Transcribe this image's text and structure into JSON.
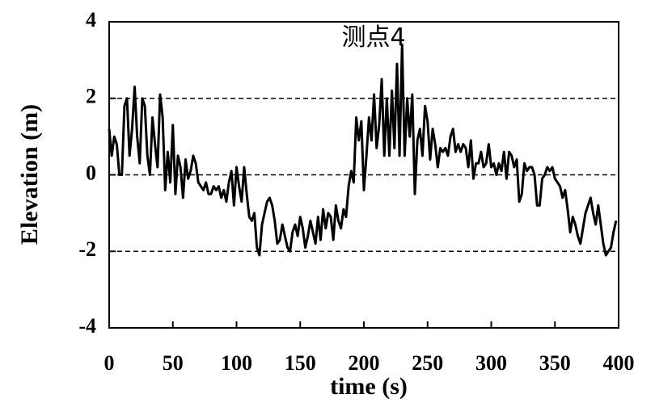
{
  "chart_data": {
    "type": "line",
    "title": "测点4",
    "x_label": "time (s)",
    "y_label": "Elevation (m)",
    "xlim": [
      0,
      400
    ],
    "xticks": [
      0,
      50,
      100,
      150,
      200,
      250,
      300,
      350,
      400
    ],
    "ylim": [
      -4,
      4
    ],
    "yticks": [
      -4,
      -2,
      0,
      2,
      4
    ],
    "grid": true,
    "x": [
      0,
      2,
      4,
      6,
      8,
      10,
      12,
      14,
      16,
      18,
      20,
      22,
      24,
      26,
      28,
      30,
      32,
      34,
      36,
      38,
      40,
      42,
      44,
      46,
      48,
      50,
      52,
      54,
      56,
      58,
      60,
      62,
      64,
      66,
      68,
      70,
      72,
      74,
      76,
      78,
      80,
      82,
      84,
      86,
      88,
      90,
      92,
      94,
      96,
      98,
      100,
      102,
      104,
      106,
      108,
      110,
      112,
      114,
      116,
      118,
      120,
      122,
      124,
      126,
      128,
      130,
      132,
      134,
      136,
      138,
      140,
      142,
      144,
      146,
      148,
      150,
      152,
      154,
      156,
      158,
      160,
      162,
      164,
      166,
      168,
      170,
      172,
      174,
      176,
      178,
      180,
      182,
      184,
      186,
      188,
      190,
      192,
      194,
      196,
      198,
      200,
      202,
      204,
      206,
      208,
      210,
      212,
      214,
      216,
      218,
      220,
      222,
      224,
      226,
      228,
      230,
      232,
      234,
      236,
      238,
      240,
      242,
      244,
      246,
      248,
      250,
      252,
      254,
      256,
      258,
      260,
      262,
      264,
      266,
      268,
      270,
      272,
      274,
      276,
      278,
      280,
      282,
      284,
      286,
      288,
      290,
      292,
      294,
      296,
      298,
      300,
      302,
      304,
      306,
      308,
      310,
      312,
      314,
      316,
      318,
      320,
      322,
      324,
      326,
      328,
      330,
      332,
      334,
      336,
      338,
      340,
      342,
      344,
      346,
      348,
      350,
      352,
      354,
      356,
      358,
      360,
      362,
      364,
      366,
      368,
      370,
      372,
      374,
      376,
      378,
      380,
      382,
      384,
      386,
      388,
      390,
      392,
      394,
      396,
      398
    ],
    "series": [
      {
        "color": "#000000",
        "values": [
          1.2,
          0.5,
          1.0,
          0.8,
          0.0,
          0.0,
          1.8,
          2.0,
          0.5,
          1.2,
          2.3,
          1.0,
          0.3,
          2.0,
          1.8,
          0.5,
          0.0,
          1.5,
          0.8,
          0.2,
          2.1,
          1.5,
          -0.4,
          0.6,
          -0.2,
          1.3,
          -0.5,
          0.5,
          0.2,
          -0.6,
          0.4,
          -0.1,
          0.1,
          0.5,
          0.3,
          -0.2,
          -0.3,
          -0.4,
          -0.2,
          -0.5,
          -0.5,
          -0.3,
          -0.4,
          -0.3,
          -0.6,
          -0.4,
          -0.7,
          -0.2,
          0.1,
          -0.8,
          0.2,
          -0.3,
          -0.7,
          0.2,
          -0.5,
          -1.1,
          -1.2,
          -1.0,
          -1.9,
          -2.1,
          -1.3,
          -1.0,
          -0.7,
          -0.6,
          -0.8,
          -1.2,
          -1.8,
          -1.7,
          -1.3,
          -1.6,
          -1.9,
          -2.0,
          -1.5,
          -1.3,
          -1.6,
          -1.1,
          -1.4,
          -1.9,
          -1.6,
          -1.2,
          -1.5,
          -1.8,
          -1.1,
          -1.7,
          -0.9,
          -1.4,
          -1.0,
          -1.1,
          -1.7,
          -0.8,
          -1.2,
          -1.4,
          -0.9,
          -1.1,
          -0.3,
          0.1,
          -0.2,
          1.5,
          0.9,
          1.4,
          -0.4,
          0.5,
          1.5,
          0.9,
          2.1,
          0.7,
          1.3,
          2.5,
          0.5,
          2.0,
          0.5,
          2.2,
          0.7,
          2.9,
          0.5,
          3.4,
          0.5,
          2.0,
          1.0,
          2.1,
          -0.5,
          0.9,
          1.2,
          0.5,
          1.8,
          1.4,
          0.4,
          1.2,
          0.8,
          0.2,
          0.7,
          0.6,
          0.7,
          0.5,
          1.0,
          1.2,
          0.6,
          0.8,
          0.6,
          0.8,
          0.7,
          0.2,
          0.9,
          -0.1,
          0.3,
          0.3,
          0.6,
          0.2,
          0.3,
          0.8,
          0.2,
          0.3,
          0.0,
          0.3,
          0.1,
          0.6,
          -0.1,
          0.6,
          0.5,
          0.2,
          0.4,
          -0.7,
          -0.5,
          0.3,
          0.1,
          0.2,
          0.2,
          0.0,
          -0.8,
          -0.8,
          -0.1,
          0.0,
          0.2,
          0.1,
          0.2,
          -0.1,
          -0.2,
          -0.3,
          -0.6,
          -0.4,
          -0.9,
          -1.5,
          -1.1,
          -1.3,
          -1.6,
          -1.8,
          -1.4,
          -1.0,
          -0.8,
          -0.6,
          -1.0,
          -1.3,
          -0.8,
          -1.3,
          -1.8,
          -2.1,
          -2.0,
          -1.9,
          -1.5,
          -1.2
        ]
      }
    ]
  }
}
